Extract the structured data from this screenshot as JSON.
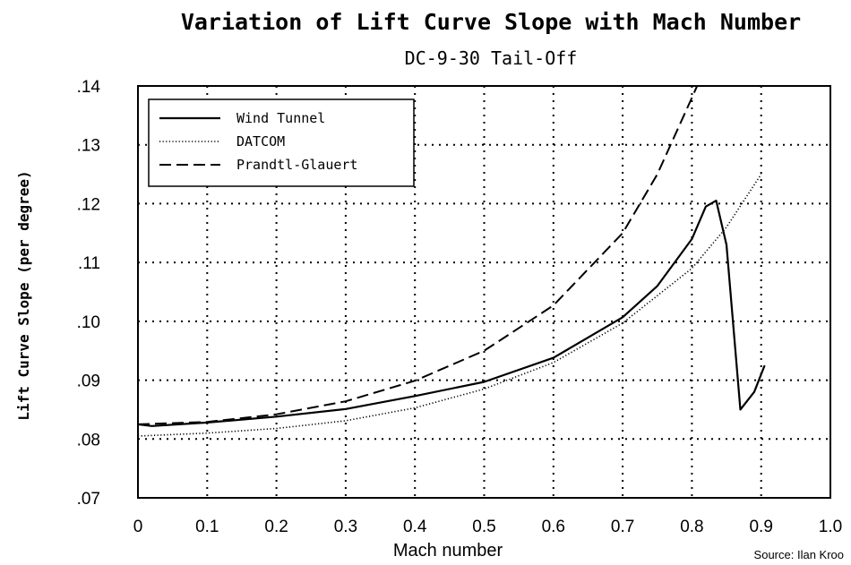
{
  "chart_data": {
    "type": "line",
    "title": "Variation of Lift Curve Slope with Mach Number",
    "subtitle": "DC-9-30 Tail-Off",
    "xlabel": "Mach number",
    "ylabel": "Lift Curve Slope (per degree)",
    "xlim": [
      0,
      1.0
    ],
    "ylim": [
      0.07,
      0.14
    ],
    "x_ticks": [
      0,
      0.1,
      0.2,
      0.3,
      0.4,
      0.5,
      0.6,
      0.7,
      0.8,
      0.9,
      1.0
    ],
    "x_tick_labels": [
      "0",
      "0.1",
      "0.2",
      "0.3",
      "0.4",
      "0.5",
      "0.6",
      "0.7",
      "0.8",
      "0.9",
      "1.0"
    ],
    "y_ticks": [
      0.07,
      0.08,
      0.09,
      0.1,
      0.11,
      0.12,
      0.13,
      0.14
    ],
    "y_tick_labels": [
      ".07",
      ".08",
      ".09",
      ".10",
      ".11",
      ".12",
      ".13",
      ".14"
    ],
    "grid": true,
    "legend_position": "top-left",
    "source": "Source:  Ilan Kroo",
    "series": [
      {
        "name": "Wind Tunnel",
        "style": "solid",
        "x": [
          0,
          0.02,
          0.1,
          0.2,
          0.3,
          0.4,
          0.5,
          0.6,
          0.7,
          0.75,
          0.8,
          0.82,
          0.835,
          0.85,
          0.87,
          0.89,
          0.905
        ],
        "y": [
          0.0825,
          0.0822,
          0.0828,
          0.0838,
          0.0851,
          0.0873,
          0.0897,
          0.0938,
          0.1007,
          0.106,
          0.114,
          0.1195,
          0.1205,
          0.113,
          0.085,
          0.088,
          0.0925
        ]
      },
      {
        "name": "DATCOM",
        "style": "dotted",
        "x": [
          0,
          0.1,
          0.2,
          0.3,
          0.4,
          0.5,
          0.6,
          0.7,
          0.8,
          0.85,
          0.9
        ],
        "y": [
          0.0805,
          0.081,
          0.0818,
          0.0831,
          0.0853,
          0.0885,
          0.093,
          0.0997,
          0.109,
          0.116,
          0.125
        ]
      },
      {
        "name": "Prandtl-Glauert",
        "style": "dashed",
        "x": [
          0,
          0.1,
          0.2,
          0.3,
          0.4,
          0.5,
          0.6,
          0.7,
          0.75,
          0.8,
          0.815
        ],
        "y": [
          0.0825,
          0.0829,
          0.0842,
          0.0864,
          0.0899,
          0.095,
          0.1027,
          0.115,
          0.125,
          0.138,
          0.142
        ]
      }
    ]
  }
}
